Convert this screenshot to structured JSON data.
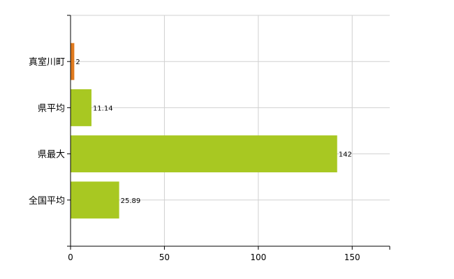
{
  "chart_data": {
    "type": "bar",
    "orientation": "horizontal",
    "categories": [
      "真室川町",
      "県平均",
      "県最大",
      "全国平均"
    ],
    "values": [
      2,
      11.14,
      142,
      25.89
    ],
    "value_labels": [
      "2",
      "11.14",
      "142",
      "25.89"
    ],
    "colors": [
      "#e07a1e",
      "#a8c822",
      "#a8c822",
      "#a8c822"
    ],
    "xlim": [
      0,
      170
    ],
    "xticks": [
      0,
      50,
      100,
      150
    ],
    "xtick_labels": [
      "0",
      "50",
      "100",
      "150"
    ],
    "grid": true,
    "title": "",
    "xlabel": "",
    "ylabel": ""
  }
}
